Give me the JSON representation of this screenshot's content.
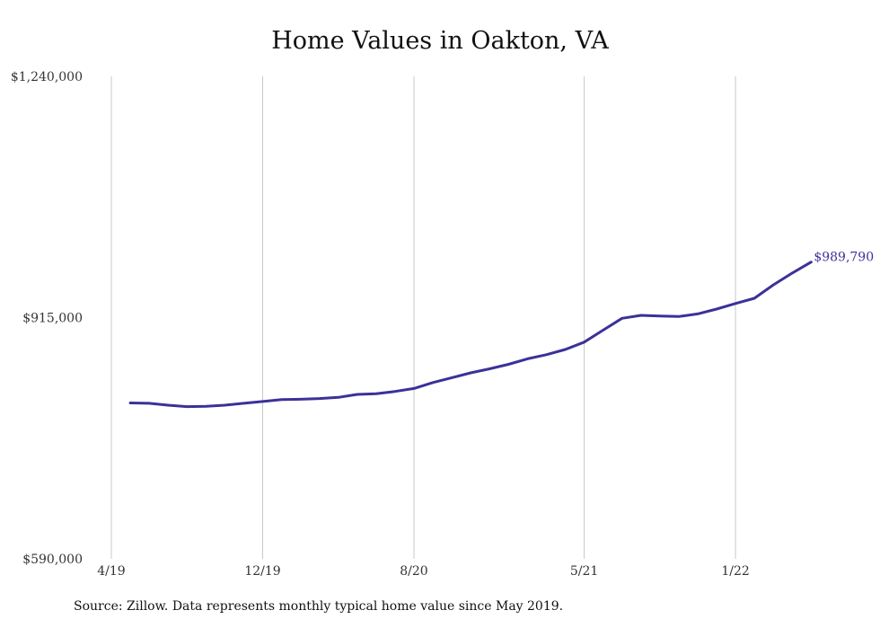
{
  "chart_data": {
    "type": "line",
    "title": "Home Values in Oakton, VA",
    "xlabel": "",
    "ylabel": "",
    "x_tick_labels": [
      "4/19",
      "12/19",
      "8/20",
      "5/21",
      "1/22"
    ],
    "y_tick_labels": [
      "$1,240,000",
      "$915,000",
      "$590,000"
    ],
    "ylim": [
      590000,
      1240000
    ],
    "grid": "vertical",
    "series": [
      {
        "color": "#3b3199",
        "x": [
          "2019-05",
          "2019-06",
          "2019-07",
          "2019-08",
          "2019-09",
          "2019-10",
          "2019-11",
          "2019-12",
          "2020-01",
          "2020-02",
          "2020-03",
          "2020-04",
          "2020-05",
          "2020-06",
          "2020-07",
          "2020-08",
          "2020-09",
          "2020-10",
          "2020-11",
          "2020-12",
          "2021-01",
          "2021-02",
          "2021-03",
          "2021-04",
          "2021-05",
          "2021-06",
          "2021-07",
          "2021-08",
          "2021-09",
          "2021-10",
          "2021-11",
          "2021-12",
          "2022-01",
          "2022-02",
          "2022-03",
          "2022-04",
          "2022-05"
        ],
        "values": [
          800000,
          799500,
          797000,
          795000,
          795500,
          797000,
          799500,
          802000,
          804500,
          805000,
          806000,
          807500,
          811500,
          812500,
          815500,
          819500,
          827500,
          834000,
          840500,
          846000,
          852000,
          859500,
          865000,
          872000,
          882000,
          898000,
          914000,
          918000,
          917000,
          916500,
          920000,
          926500,
          934000,
          941000,
          959000,
          975000,
          989790
        ]
      }
    ],
    "end_label": "$989,790"
  },
  "source_note": "Source: Zillow. Data represents monthly typical home value since May 2019."
}
